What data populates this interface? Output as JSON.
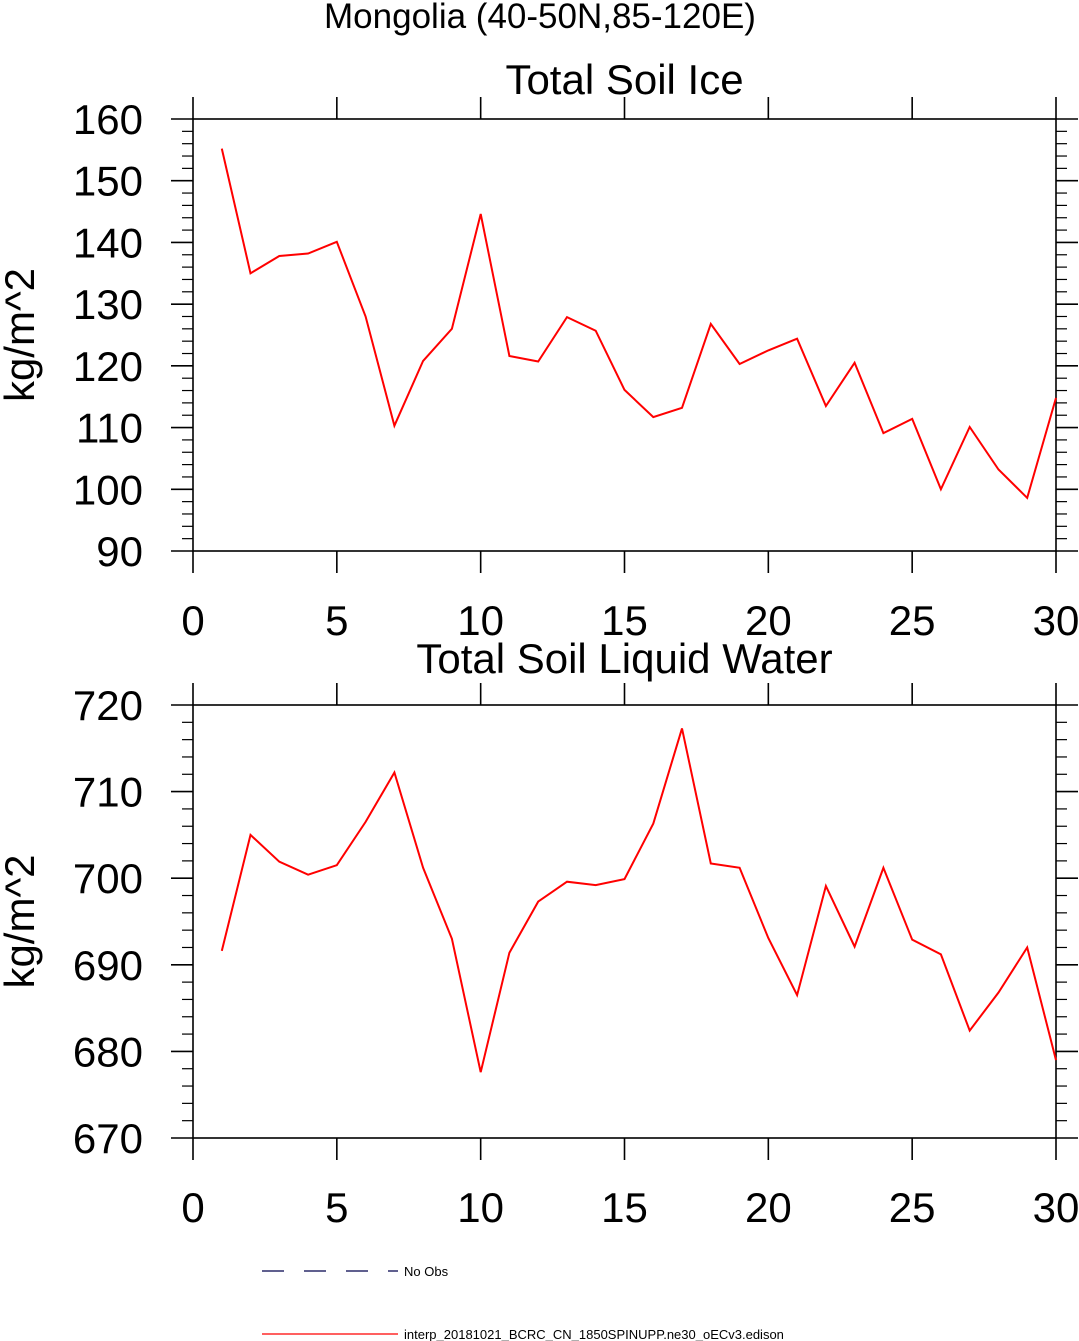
{
  "figure": {
    "title": "Mongolia (40-50N,85-120E)"
  },
  "legend": {
    "items": [
      {
        "label": "No Obs",
        "color": "#00004c",
        "style": "dashed"
      },
      {
        "label": "interp_20181021_BCRC_CN_1850SPINUPP.ne30_oECv3.edison",
        "color": "#ff0000",
        "style": "solid"
      }
    ]
  },
  "chart_data": [
    {
      "type": "line",
      "title": "Total Soil Ice",
      "xlabel": "",
      "ylabel": "kg/m^2",
      "xlim": [
        0,
        30
      ],
      "ylim": [
        90,
        160
      ],
      "xticks": [
        0,
        5,
        10,
        15,
        20,
        25,
        30
      ],
      "yticks": [
        90,
        100,
        110,
        120,
        130,
        140,
        150,
        160
      ],
      "grid": false,
      "series": [
        {
          "name": "interp_20181021_BCRC_CN_1850SPINUPP.ne30_oECv3.edison",
          "color": "#ff0000",
          "x": [
            1,
            2,
            3,
            4,
            5,
            6,
            7,
            8,
            9,
            10,
            11,
            12,
            13,
            14,
            15,
            16,
            17,
            18,
            19,
            20,
            21,
            22,
            23,
            24,
            25,
            26,
            27,
            28,
            29,
            30
          ],
          "values": [
            155.2,
            135.0,
            137.8,
            138.2,
            140.1,
            128.0,
            110.3,
            120.8,
            126.0,
            144.6,
            121.6,
            120.7,
            127.9,
            125.7,
            116.1,
            111.7,
            113.2,
            126.8,
            120.3,
            122.5,
            124.4,
            113.5,
            120.5,
            109.1,
            111.4,
            100.0,
            110.1,
            103.2,
            98.6,
            114.8
          ]
        }
      ]
    },
    {
      "type": "line",
      "title": "Total Soil Liquid Water",
      "xlabel": "",
      "ylabel": "kg/m^2",
      "xlim": [
        0,
        30
      ],
      "ylim": [
        670,
        720
      ],
      "xticks": [
        0,
        5,
        10,
        15,
        20,
        25,
        30
      ],
      "yticks": [
        670,
        680,
        690,
        700,
        710,
        720
      ],
      "grid": false,
      "series": [
        {
          "name": "interp_20181021_BCRC_CN_1850SPINUPP.ne30_oECv3.edison",
          "color": "#ff0000",
          "x": [
            1,
            2,
            3,
            4,
            5,
            6,
            7,
            8,
            9,
            10,
            11,
            12,
            13,
            14,
            15,
            16,
            17,
            18,
            19,
            20,
            21,
            22,
            23,
            24,
            25,
            26,
            27,
            28,
            29,
            30
          ],
          "values": [
            691.6,
            705.0,
            701.9,
            700.4,
            701.5,
            706.5,
            712.2,
            701.2,
            693.0,
            677.6,
            691.4,
            697.3,
            699.6,
            699.2,
            699.9,
            706.3,
            717.3,
            701.7,
            701.2,
            693.1,
            686.5,
            699.1,
            692.1,
            701.2,
            692.9,
            691.2,
            682.4,
            686.8,
            692.0,
            679.0
          ]
        }
      ]
    }
  ]
}
